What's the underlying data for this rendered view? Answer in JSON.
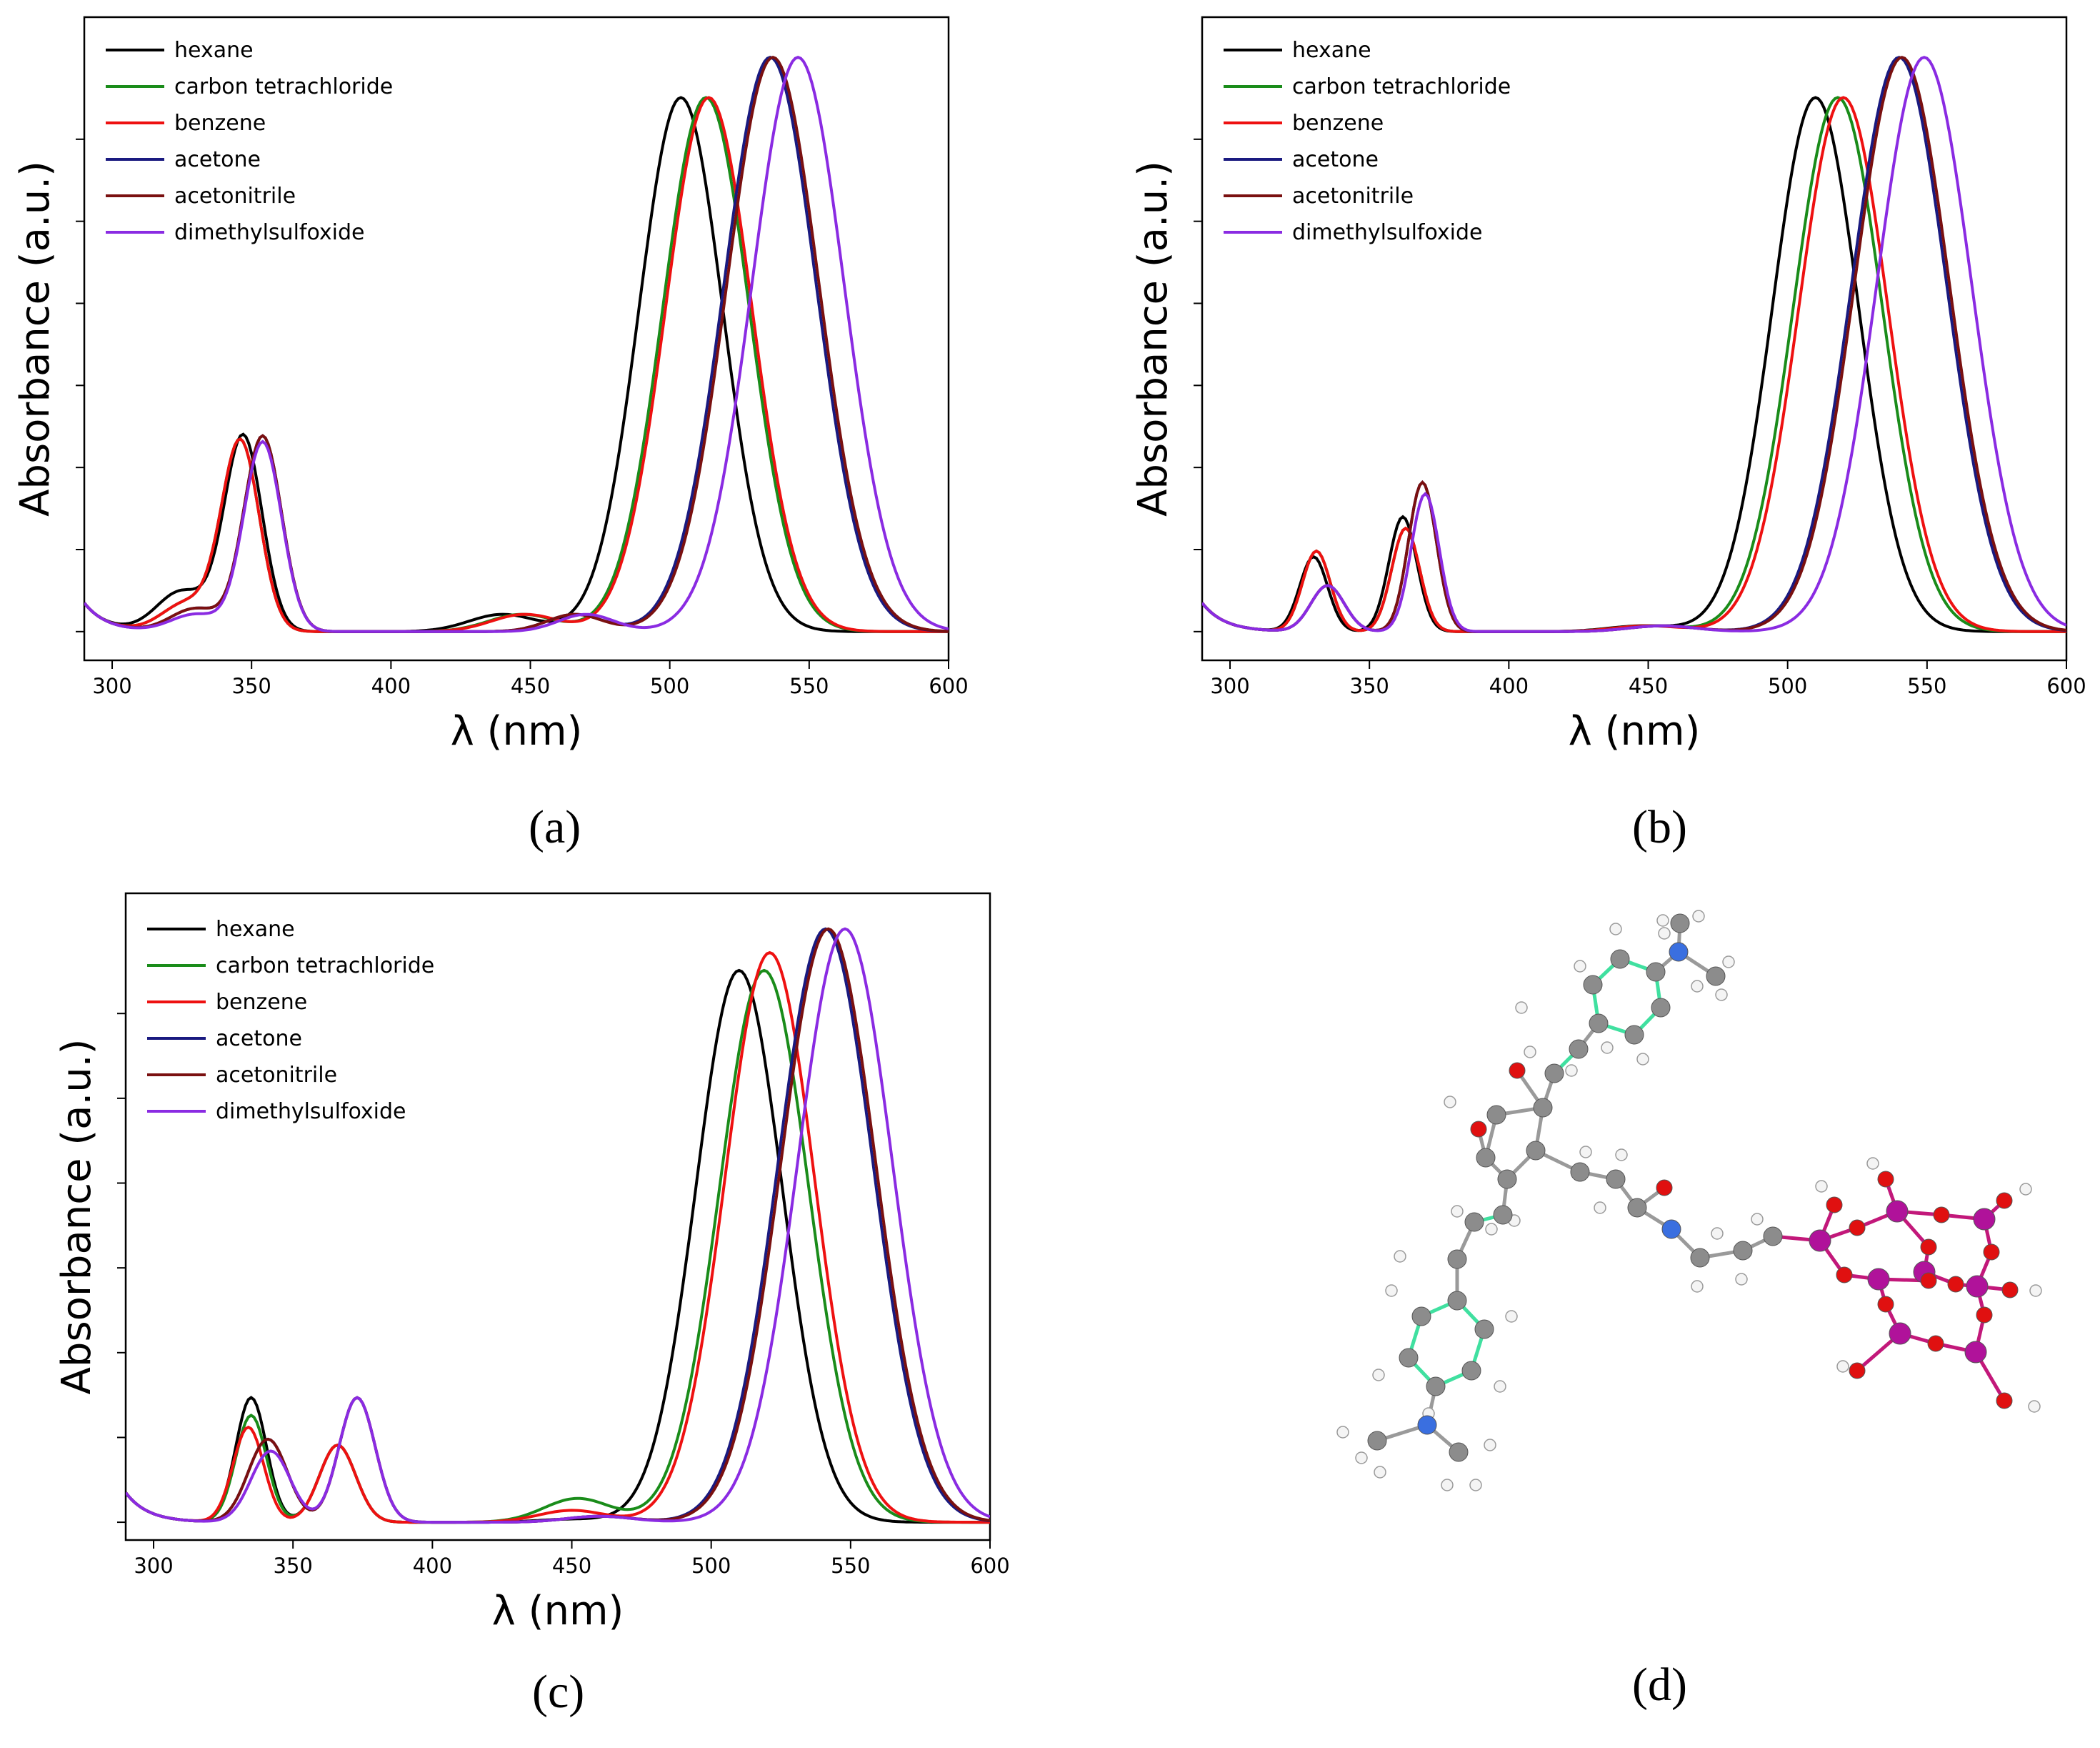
{
  "colors": {
    "hexane": "#000000",
    "carbon tetrachloride": "#1a8c1a",
    "benzene": "#ee1111",
    "acetone": "#1a1a80",
    "acetonitrile": "#7a1010",
    "dimethylsulfoxide": "#8a2be2",
    "carbon": "#8c8c8c",
    "hydrogen": "#ffffff",
    "nitrogen": "#3a6fe0",
    "oxygen": "#e01010",
    "phosphorus": "#b0129a",
    "aromatic-bond": "#40e0a0"
  },
  "panel_labels": {
    "a": "(a)",
    "b": "(b)",
    "c": "(c)",
    "d": "(d)"
  },
  "chart_data": [
    {
      "id": "a",
      "type": "line",
      "xlabel": "λ (nm)",
      "ylabel": "Absorbance (a.u.)",
      "xlim": [
        290,
        600
      ],
      "ylim": [
        -0.05,
        1.07
      ],
      "xticks": [
        300,
        350,
        400,
        450,
        500,
        550,
        600
      ],
      "legend_position": "top-left",
      "series": [
        {
          "name": "hexane",
          "peaks": [
            [
              347,
              0.34,
              6.8
            ],
            [
              325,
              0.07,
              9
            ],
            [
              440,
              0.03,
              12
            ],
            [
              504,
              0.93,
              15.0
            ]
          ]
        },
        {
          "name": "carbon tetrachloride",
          "peaks": [
            [
              346,
              0.33,
              6.8
            ],
            [
              327,
              0.05,
              9
            ],
            [
              447,
              0.03,
              12
            ],
            [
              513,
              0.93,
              15.5
            ]
          ]
        },
        {
          "name": "benzene",
          "peaks": [
            [
              346,
              0.33,
              6.8
            ],
            [
              327,
              0.05,
              9
            ],
            [
              448,
              0.03,
              12
            ],
            [
              514,
              0.93,
              15.5
            ]
          ]
        },
        {
          "name": "acetone",
          "peaks": [
            [
              354,
              0.34,
              6.8
            ],
            [
              330,
              0.04,
              9
            ],
            [
              466,
              0.03,
              10
            ],
            [
              536,
              1.0,
              16.5
            ]
          ]
        },
        {
          "name": "acetonitrile",
          "peaks": [
            [
              354,
              0.34,
              6.8
            ],
            [
              330,
              0.04,
              9
            ],
            [
              466,
              0.03,
              10
            ],
            [
              537,
              1.0,
              16.5
            ]
          ]
        },
        {
          "name": "dimethylsulfoxide",
          "peaks": [
            [
              354,
              0.33,
              6.8
            ],
            [
              330,
              0.03,
              9
            ],
            [
              470,
              0.03,
              10
            ],
            [
              546,
              1.0,
              16.5
            ]
          ]
        }
      ]
    },
    {
      "id": "b",
      "type": "line",
      "xlabel": "λ (nm)",
      "ylabel": "Absorbance (a.u.)",
      "xlim": [
        290,
        600
      ],
      "ylim": [
        -0.05,
        1.07
      ],
      "xticks": [
        300,
        350,
        400,
        450,
        500,
        550,
        600
      ],
      "legend_position": "top-left",
      "series": [
        {
          "name": "hexane",
          "peaks": [
            [
              330,
              0.13,
              5
            ],
            [
              362,
              0.2,
              5
            ],
            [
              448,
              0.01,
              12
            ],
            [
              510,
              0.93,
              15.5
            ]
          ]
        },
        {
          "name": "carbon tetrachloride",
          "peaks": [
            [
              331,
              0.14,
              5
            ],
            [
              363,
              0.18,
              5
            ],
            [
              450,
              0.01,
              12
            ],
            [
              518,
              0.93,
              16
            ]
          ]
        },
        {
          "name": "benzene",
          "peaks": [
            [
              331,
              0.14,
              5
            ],
            [
              363,
              0.18,
              5
            ],
            [
              450,
              0.01,
              12
            ],
            [
              520,
              0.93,
              16
            ]
          ]
        },
        {
          "name": "acetone",
          "peaks": [
            [
              335,
              0.08,
              6
            ],
            [
              369,
              0.26,
              5
            ],
            [
              455,
              0.01,
              12
            ],
            [
              540,
              1.0,
              17
            ]
          ]
        },
        {
          "name": "acetonitrile",
          "peaks": [
            [
              335,
              0.08,
              6
            ],
            [
              369,
              0.26,
              5
            ],
            [
              455,
              0.01,
              12
            ],
            [
              541,
              1.0,
              17
            ]
          ]
        },
        {
          "name": "dimethylsulfoxide",
          "peaks": [
            [
              335,
              0.08,
              6
            ],
            [
              370,
              0.24,
              5
            ],
            [
              455,
              0.01,
              12
            ],
            [
              549,
              1.0,
              17
            ]
          ]
        }
      ]
    },
    {
      "id": "c",
      "type": "line",
      "xlabel": "λ (nm)",
      "ylabel": "Absorbance (a.u.)",
      "xlim": [
        290,
        600
      ],
      "ylim": [
        -0.03,
        1.06
      ],
      "xticks": [
        300,
        350,
        400,
        450,
        500,
        550,
        600
      ],
      "legend_position": "top-left",
      "series": [
        {
          "name": "hexane",
          "peaks": [
            [
              335,
              0.21,
              5.5
            ],
            [
              366,
              0.13,
              6.5
            ],
            [
              450,
              0.005,
              12
            ],
            [
              510,
              0.93,
              15.5
            ]
          ]
        },
        {
          "name": "carbon tetrachloride",
          "peaks": [
            [
              335,
              0.18,
              5.5
            ],
            [
              366,
              0.13,
              6.5
            ],
            [
              452,
              0.04,
              12
            ],
            [
              519,
              0.93,
              16
            ]
          ]
        },
        {
          "name": "benzene",
          "peaks": [
            [
              334,
              0.16,
              5.5
            ],
            [
              366,
              0.13,
              6.5
            ],
            [
              450,
              0.02,
              12
            ],
            [
              521,
              0.96,
              16
            ]
          ]
        },
        {
          "name": "acetone",
          "peaks": [
            [
              341,
              0.14,
              7
            ],
            [
              373,
              0.21,
              6.5
            ],
            [
              460,
              0.01,
              12
            ],
            [
              541,
              1.0,
              17
            ]
          ]
        },
        {
          "name": "acetonitrile",
          "peaks": [
            [
              341,
              0.14,
              7
            ],
            [
              373,
              0.21,
              6.5
            ],
            [
              460,
              0.01,
              12
            ],
            [
              542,
              1.0,
              17
            ]
          ]
        },
        {
          "name": "dimethylsulfoxide",
          "peaks": [
            [
              342,
              0.12,
              7
            ],
            [
              373,
              0.21,
              6.5
            ],
            [
              460,
              0.01,
              12
            ],
            [
              548,
              1.0,
              17
            ]
          ]
        }
      ]
    }
  ]
}
